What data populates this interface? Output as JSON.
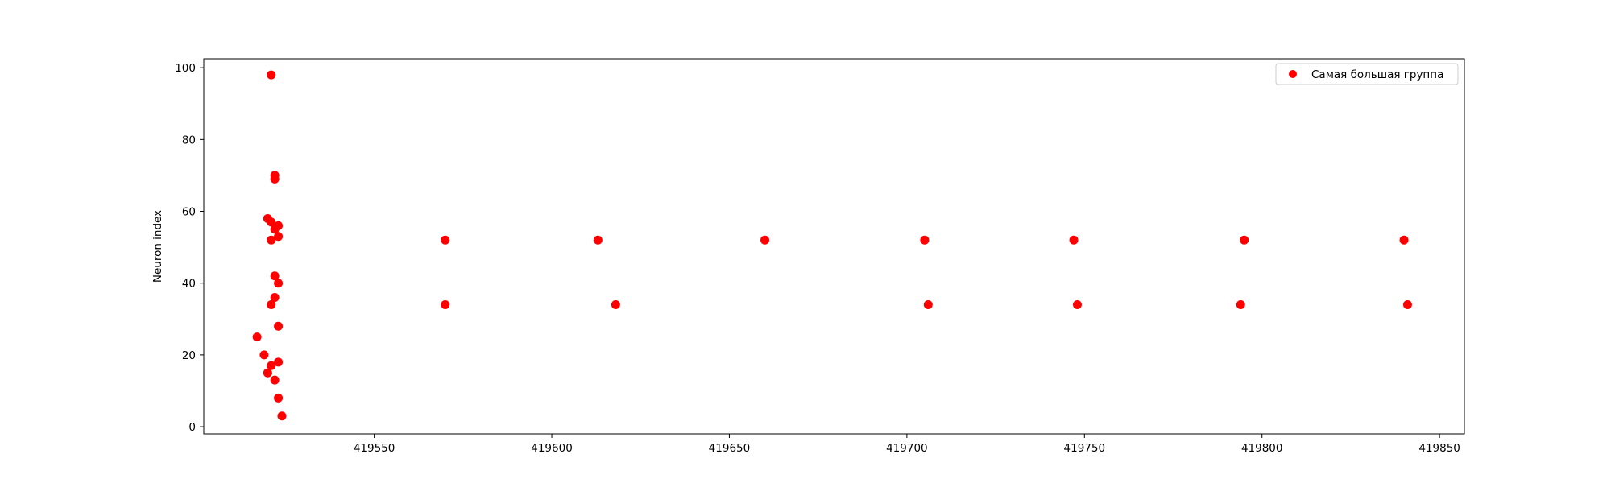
{
  "chart_data": {
    "type": "scatter",
    "title": "",
    "xlabel": "",
    "ylabel": "Neuron index",
    "xlim": [
      419502,
      419857
    ],
    "ylim": [
      -2,
      102.5
    ],
    "xticks": [
      419550,
      419600,
      419650,
      419700,
      419750,
      419800,
      419850
    ],
    "yticks": [
      0,
      20,
      40,
      60,
      80,
      100
    ],
    "grid": false,
    "legend_position": "top-right",
    "series": [
      {
        "name": "Самая большая группа",
        "color": "#ff0000",
        "points": [
          {
            "x": 419521,
            "y": 98
          },
          {
            "x": 419522,
            "y": 70
          },
          {
            "x": 419522,
            "y": 69
          },
          {
            "x": 419520,
            "y": 58
          },
          {
            "x": 419521,
            "y": 57
          },
          {
            "x": 419523,
            "y": 56
          },
          {
            "x": 419522,
            "y": 55
          },
          {
            "x": 419523,
            "y": 53
          },
          {
            "x": 419521,
            "y": 52
          },
          {
            "x": 419522,
            "y": 42
          },
          {
            "x": 419523,
            "y": 40
          },
          {
            "x": 419522,
            "y": 36
          },
          {
            "x": 419521,
            "y": 34
          },
          {
            "x": 419523,
            "y": 28
          },
          {
            "x": 419517,
            "y": 25
          },
          {
            "x": 419519,
            "y": 20
          },
          {
            "x": 419523,
            "y": 18
          },
          {
            "x": 419521,
            "y": 17
          },
          {
            "x": 419520,
            "y": 15
          },
          {
            "x": 419522,
            "y": 13
          },
          {
            "x": 419523,
            "y": 8
          },
          {
            "x": 419524,
            "y": 3
          },
          {
            "x": 419570,
            "y": 52
          },
          {
            "x": 419570,
            "y": 34
          },
          {
            "x": 419613,
            "y": 52
          },
          {
            "x": 419618,
            "y": 34
          },
          {
            "x": 419660,
            "y": 52
          },
          {
            "x": 419705,
            "y": 52
          },
          {
            "x": 419706,
            "y": 34
          },
          {
            "x": 419747,
            "y": 52
          },
          {
            "x": 419748,
            "y": 34
          },
          {
            "x": 419795,
            "y": 52
          },
          {
            "x": 419794,
            "y": 34
          },
          {
            "x": 419840,
            "y": 52
          },
          {
            "x": 419841,
            "y": 34
          }
        ]
      }
    ]
  }
}
